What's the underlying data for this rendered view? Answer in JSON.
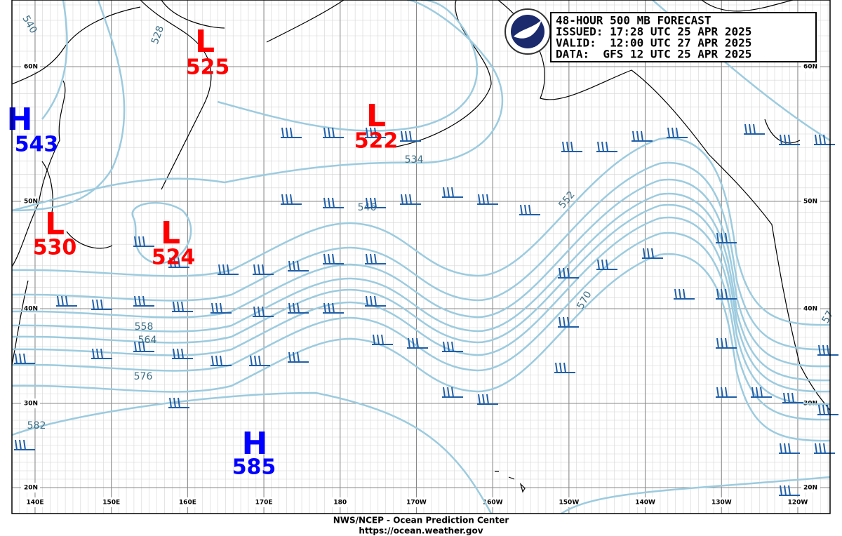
{
  "header": {
    "title": "48-HOUR 500 MB FORECAST",
    "issued": "ISSUED: 17:28 UTC 25 APR 2025",
    "valid": "VALID:  12:00 UTC 27 APR 2025",
    "data": "DATA:  GFS 12 UTC 25 APR 2025"
  },
  "lat_labels": [
    "60N",
    "50N",
    "40N",
    "30N",
    "20N"
  ],
  "lon_labels": [
    "140E",
    "150E",
    "160E",
    "170E",
    "180",
    "170W",
    "160W",
    "150W",
    "140W",
    "130W",
    "120W"
  ],
  "centers": [
    {
      "symbol": "L",
      "value": "525"
    },
    {
      "symbol": "L",
      "value": "522"
    },
    {
      "symbol": "H",
      "value": "543"
    },
    {
      "symbol": "L",
      "value": "530"
    },
    {
      "symbol": "L",
      "value": "524"
    },
    {
      "symbol": "H",
      "value": "585"
    }
  ],
  "contour_labels": [
    "540",
    "528",
    "534",
    "546",
    "552",
    "558",
    "564",
    "570",
    "576",
    "582",
    "57"
  ],
  "footer": {
    "source": "NWS/NCEP - Ocean Prediction Center",
    "url": "https://ocean.weather.gov"
  }
}
